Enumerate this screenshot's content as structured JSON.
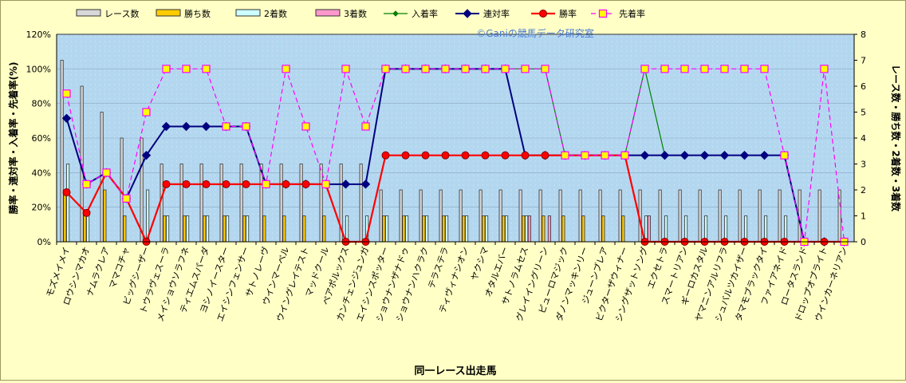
{
  "chart_data": {
    "type": "bar",
    "title": "",
    "watermark": "©Ganiの競馬データ研究室",
    "xlabel": "同一レース出走馬",
    "ylabel_left": "勝率・連対率・入着率・先着率(%)",
    "ylabel_right": "レース数・勝ち数・2着数・3着数",
    "ylim_left": [
      0,
      120
    ],
    "ylim_right": [
      0,
      8
    ],
    "y_ticks_left": [
      "0%",
      "20%",
      "40%",
      "60%",
      "80%",
      "100%",
      "120%"
    ],
    "y_ticks_right": [
      "0",
      "1",
      "2",
      "3",
      "4",
      "5",
      "6",
      "7",
      "8"
    ],
    "grid": true,
    "legend_position": "top",
    "categories": [
      "モズメイメイ",
      "ロウシンマカオ",
      "ナムラクレア",
      "ママコチャ",
      "ビッグシーザー",
      "トウラヴェスーラ",
      "メイショウソラフネ",
      "ティエムスパーダ",
      "ヨシノイースター",
      "エイシンフェンサー",
      "サトノレーヴ",
      "ウインマーベル",
      "ウイングレイテスト",
      "マッドクール",
      "ペアポルックス",
      "カンチェンジュンガ",
      "エイシンスポッター",
      "ショウナンザナドゥ",
      "ショウナンハクラク",
      "テラステラ",
      "ティヴィナシオン",
      "ヤクシマ",
      "オタルエバー",
      "サトノラムセス",
      "グレイイングリーン",
      "ピューロマジック",
      "ダノンマッキンリー",
      "ジューンブレア",
      "ビクターザウィナー",
      "シングザットソング",
      "エクセトラ",
      "スマートリアン",
      "ギーロカスタル",
      "ヤマニンアルリフラ",
      "シュバルツカイザー",
      "タマモブラックタイ",
      "ファイアネイド",
      "ロータスランド",
      "ドロップオブライト",
      "ウインカーネリアン"
    ],
    "series": [
      {
        "name": "レース数",
        "kind": "bar",
        "axis": "right",
        "color": "#d8d8d8",
        "values": [
          7,
          6,
          5,
          4,
          4,
          3,
          3,
          3,
          3,
          3,
          3,
          3,
          3,
          3,
          3,
          3,
          2,
          2,
          2,
          2,
          2,
          2,
          2,
          2,
          2,
          2,
          2,
          2,
          2,
          2,
          2,
          2,
          2,
          2,
          2,
          2,
          2,
          2,
          2,
          2
        ]
      },
      {
        "name": "勝ち数",
        "kind": "bar",
        "axis": "right",
        "color": "#ffcc00",
        "values": [
          2,
          1,
          2,
          1,
          0,
          1,
          1,
          1,
          1,
          1,
          1,
          1,
          1,
          1,
          0,
          0,
          1,
          1,
          1,
          1,
          1,
          1,
          1,
          1,
          1,
          1,
          1,
          1,
          1,
          0,
          0,
          0,
          0,
          0,
          0,
          0,
          0,
          0,
          0,
          0
        ]
      },
      {
        "name": "2着数",
        "kind": "bar",
        "axis": "right",
        "color": "#ccffff",
        "values": [
          3,
          1,
          0,
          0,
          2,
          1,
          1,
          1,
          1,
          1,
          0,
          0,
          0,
          0,
          1,
          1,
          1,
          1,
          1,
          1,
          1,
          1,
          1,
          1,
          0,
          0,
          0,
          0,
          0,
          1,
          1,
          1,
          1,
          1,
          1,
          1,
          1,
          0,
          0,
          0
        ]
      },
      {
        "name": "3着数",
        "kind": "bar",
        "axis": "right",
        "color": "#ff99cc",
        "values": [
          0,
          0,
          0,
          0,
          0,
          0,
          0,
          0,
          0,
          0,
          0,
          0,
          0,
          0,
          0,
          0,
          0,
          0,
          0,
          0,
          0,
          0,
          0,
          1,
          1,
          0,
          0,
          0,
          0,
          1,
          0,
          0,
          0,
          0,
          0,
          0,
          0,
          0,
          0,
          0
        ]
      },
      {
        "name": "入着率",
        "kind": "line",
        "axis": "left",
        "color": "#008000",
        "values": [
          71.4,
          33.3,
          40,
          25,
          50,
          66.7,
          66.7,
          66.7,
          66.7,
          66.7,
          33.3,
          33.3,
          33.3,
          33.3,
          33.3,
          33.3,
          100,
          100,
          100,
          100,
          100,
          100,
          100,
          100,
          100,
          50,
          50,
          50,
          50,
          100,
          50,
          50,
          50,
          50,
          50,
          50,
          50,
          0,
          0,
          0
        ]
      },
      {
        "name": "連対率",
        "kind": "line",
        "axis": "left",
        "color": "#000080",
        "values": [
          71.4,
          33.3,
          40,
          25,
          50,
          66.7,
          66.7,
          66.7,
          66.7,
          66.7,
          33.3,
          33.3,
          33.3,
          33.3,
          33.3,
          33.3,
          100,
          100,
          100,
          100,
          100,
          100,
          100,
          50,
          50,
          50,
          50,
          50,
          50,
          50,
          50,
          50,
          50,
          50,
          50,
          50,
          50,
          0,
          0,
          0
        ]
      },
      {
        "name": "勝率",
        "kind": "line",
        "axis": "left",
        "color": "#ff0000",
        "values": [
          28.6,
          16.7,
          40,
          25,
          0,
          33.3,
          33.3,
          33.3,
          33.3,
          33.3,
          33.3,
          33.3,
          33.3,
          33.3,
          0,
          0,
          50,
          50,
          50,
          50,
          50,
          50,
          50,
          50,
          50,
          50,
          50,
          50,
          50,
          0,
          0,
          0,
          0,
          0,
          0,
          0,
          0,
          0,
          0,
          0
        ]
      },
      {
        "name": "先着率",
        "kind": "line",
        "axis": "left",
        "color": "#ff00ff",
        "values": [
          85.7,
          33.3,
          40,
          25,
          75,
          100,
          100,
          100,
          66.7,
          66.7,
          33.3,
          100,
          66.7,
          33.3,
          100,
          66.7,
          100,
          100,
          100,
          100,
          100,
          100,
          100,
          100,
          100,
          50,
          50,
          50,
          50,
          100,
          100,
          100,
          100,
          100,
          100,
          100,
          50,
          0,
          100,
          0
        ]
      }
    ]
  }
}
